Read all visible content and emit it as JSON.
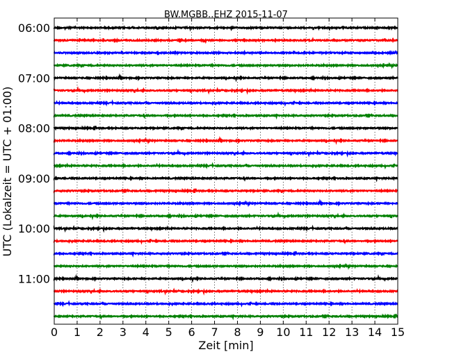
{
  "chart_data": {
    "type": "line",
    "title": "BW.MGBB..EHZ 2015-11-07",
    "xlabel": "Zeit  [min]",
    "ylabel": "UTC (Lokalzeit = UTC + 01:00)",
    "xlim": [
      0,
      15
    ],
    "x_ticks": [
      "0",
      "1",
      "2",
      "3",
      "4",
      "5",
      "6",
      "7",
      "8",
      "9",
      "10",
      "11",
      "12",
      "13",
      "14",
      "15"
    ],
    "grid": "vertical dotted at each minute",
    "y_tick_labels": [
      "06:00",
      "07:00",
      "08:00",
      "09:00",
      "10:00",
      "11:00"
    ],
    "trace_interval_min": 15,
    "trace_colors": [
      "#000000",
      "#ff0000",
      "#0000ff",
      "#008000"
    ],
    "traces": [
      {
        "start": "06:00",
        "end_min": 15
      },
      {
        "start": "06:15",
        "end_min": 15
      },
      {
        "start": "06:30",
        "end_min": 15
      },
      {
        "start": "06:45",
        "end_min": 15
      },
      {
        "start": "07:00",
        "end_min": 15
      },
      {
        "start": "07:15",
        "end_min": 15
      },
      {
        "start": "07:30",
        "end_min": 15
      },
      {
        "start": "07:45",
        "end_min": 15
      },
      {
        "start": "08:00",
        "end_min": 15
      },
      {
        "start": "08:15",
        "end_min": 15
      },
      {
        "start": "08:30",
        "end_min": 15
      },
      {
        "start": "08:45",
        "end_min": 15
      },
      {
        "start": "09:00",
        "end_min": 15
      },
      {
        "start": "09:15",
        "end_min": 15
      },
      {
        "start": "09:30",
        "end_min": 15
      },
      {
        "start": "09:45",
        "end_min": 15
      },
      {
        "start": "10:00",
        "end_min": 15
      },
      {
        "start": "10:15",
        "end_min": 15
      },
      {
        "start": "10:30",
        "end_min": 15
      },
      {
        "start": "10:45",
        "end_min": 15
      },
      {
        "start": "11:00",
        "end_min": 15
      },
      {
        "start": "11:15",
        "end_min": 15
      },
      {
        "start": "11:30",
        "end_min": 15
      },
      {
        "start": "11:45",
        "end_min": 15
      }
    ]
  }
}
